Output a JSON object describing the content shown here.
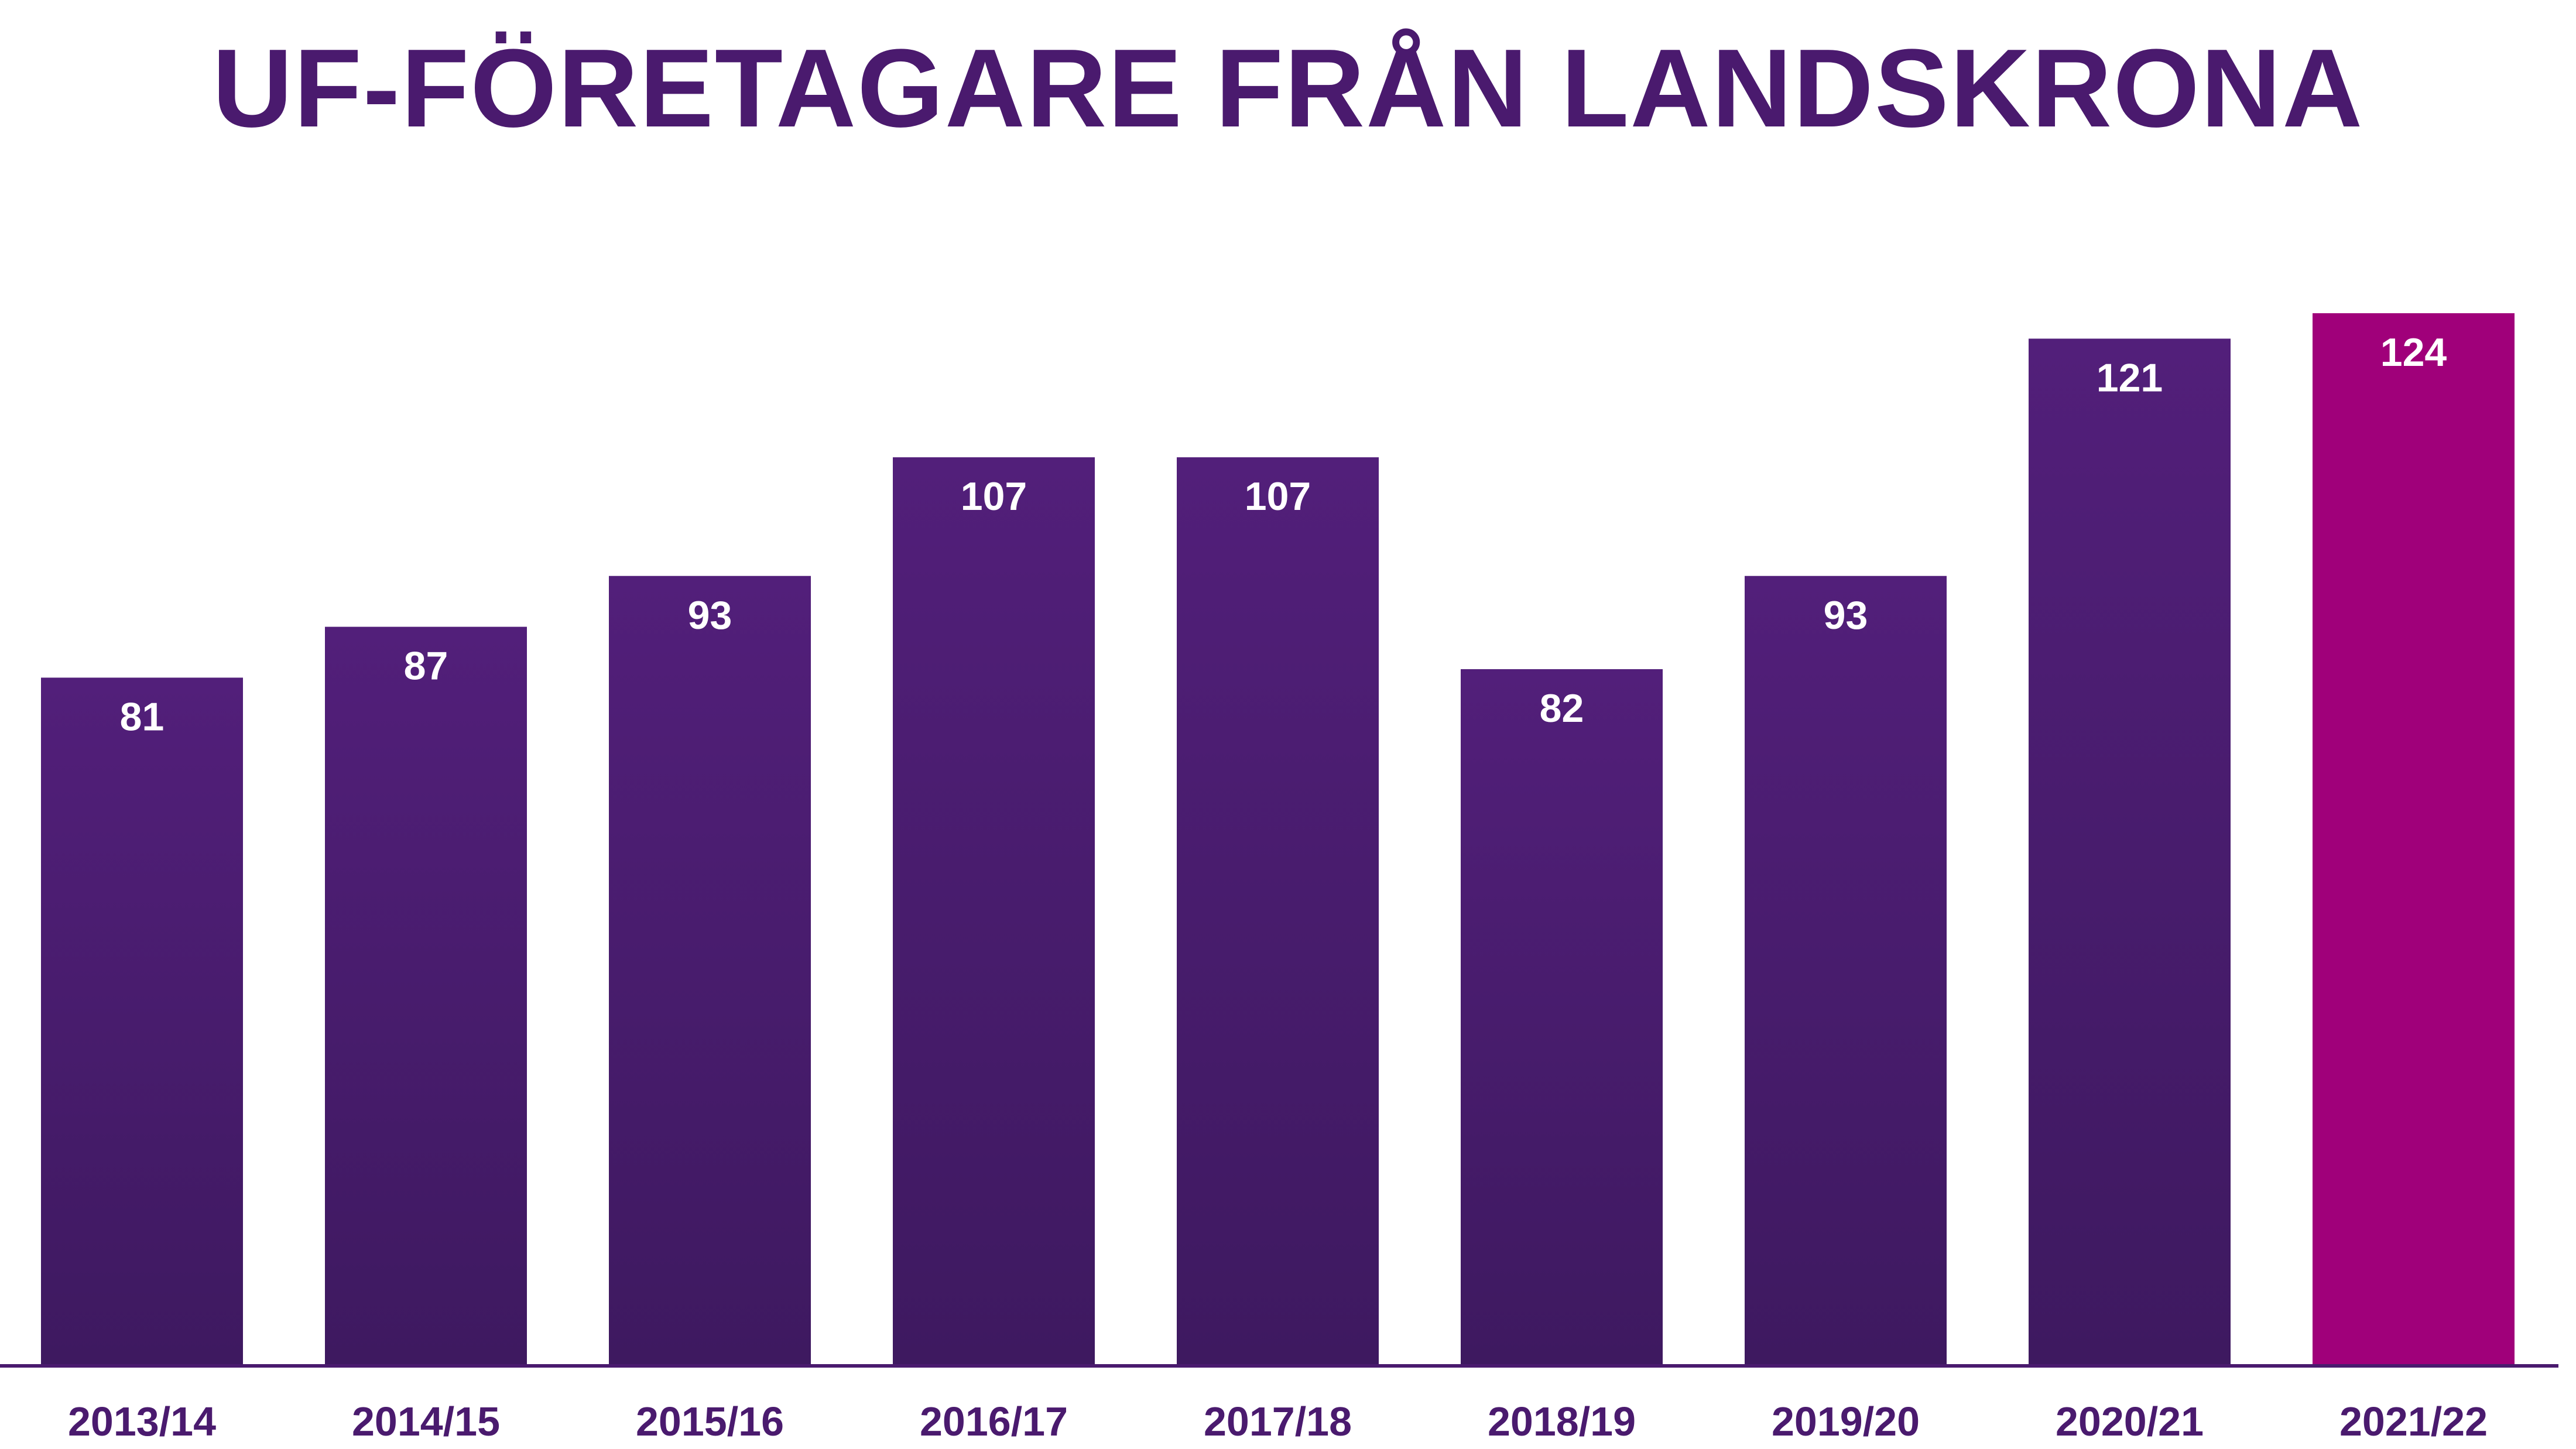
{
  "title": "UF-FÖRETAGARE FRÅN LANDSKRONA",
  "colors": {
    "title": "#4a1a6e",
    "bar_top": "#521f7a",
    "bar_bottom": "#3e1960",
    "highlight": "#a0007a",
    "axis": "#4a1a6e",
    "tick_text": "#4a1a6e",
    "value_text": "#ffffff"
  },
  "chart_data": {
    "type": "bar",
    "title": "UF-FÖRETAGARE FRÅN LANDSKRONA",
    "categories": [
      "2013/14",
      "2014/15",
      "2015/16",
      "2016/17",
      "2017/18",
      "2018/19",
      "2019/20",
      "2020/21",
      "2021/22"
    ],
    "values": [
      81,
      87,
      93,
      107,
      107,
      82,
      93,
      121,
      124
    ],
    "highlighted_category": "2021/22",
    "data_labels": [
      "81",
      "87",
      "93",
      "107",
      "107",
      "82",
      "93",
      "121",
      "124"
    ],
    "xlabel": "",
    "ylabel": "",
    "ylim": [
      0,
      124
    ],
    "grid": false,
    "legend": "none"
  }
}
